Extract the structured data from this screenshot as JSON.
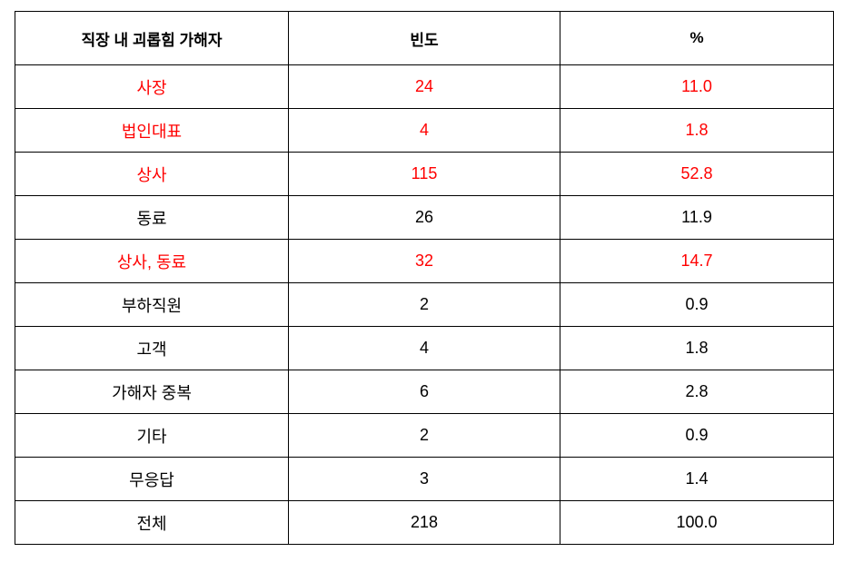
{
  "table": {
    "header": [
      "직장 내 괴롭힘 가해자",
      "빈도",
      "%"
    ],
    "rows": [
      [
        "사장",
        "24",
        "11.0"
      ],
      [
        "법인대표",
        "4",
        "1.8"
      ],
      [
        "상사",
        "115",
        "52.8"
      ],
      [
        "동료",
        "26",
        "11.9"
      ],
      [
        "상사, 동료",
        "32",
        "14.7"
      ],
      [
        "부하직원",
        "2",
        "0.9"
      ],
      [
        "고객",
        "4",
        "1.8"
      ],
      [
        "가해자 중복",
        "6",
        "2.8"
      ],
      [
        "기타",
        "2",
        "0.9"
      ],
      [
        "무응답",
        "3",
        "1.4"
      ],
      [
        "전체",
        "218",
        "100.0"
      ]
    ]
  }
}
